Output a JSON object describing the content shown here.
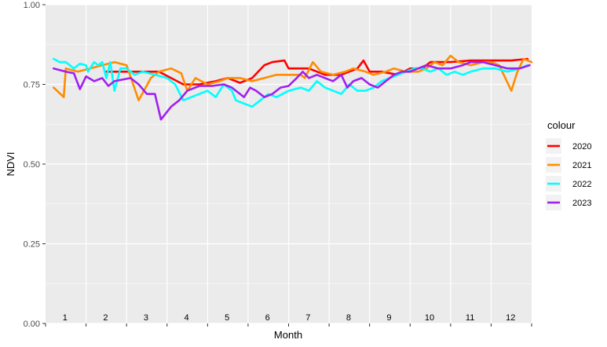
{
  "chart_data": {
    "type": "line",
    "title": "",
    "xlabel": "Month",
    "ylabel": "NDVI",
    "ylim": [
      0,
      1
    ],
    "xlim": [
      0.5,
      12.5
    ],
    "yticks": [
      "0.00",
      "0.25",
      "0.50",
      "0.75",
      "1.00"
    ],
    "month_labels": [
      "1",
      "2",
      "3",
      "4",
      "5",
      "6",
      "7",
      "8",
      "9",
      "10",
      "11",
      "12"
    ],
    "grid": true,
    "legend": {
      "title": "colour",
      "position": "right"
    },
    "series": [
      {
        "name": "2020",
        "color": "#FF0000",
        "points": [
          [
            2.0,
            0.79
          ],
          [
            2.5,
            0.79
          ],
          [
            3.0,
            0.79
          ],
          [
            3.3,
            0.79
          ],
          [
            3.6,
            0.77
          ],
          [
            3.9,
            0.75
          ],
          [
            4.3,
            0.75
          ],
          [
            4.7,
            0.76
          ],
          [
            5.0,
            0.77
          ],
          [
            5.3,
            0.755
          ],
          [
            5.6,
            0.77
          ],
          [
            5.9,
            0.81
          ],
          [
            6.1,
            0.82
          ],
          [
            6.4,
            0.825
          ],
          [
            6.5,
            0.8
          ],
          [
            6.8,
            0.8
          ],
          [
            7.0,
            0.8
          ],
          [
            7.4,
            0.78
          ],
          [
            7.8,
            0.78
          ],
          [
            8.2,
            0.8
          ],
          [
            8.35,
            0.825
          ],
          [
            8.5,
            0.79
          ],
          [
            8.8,
            0.79
          ],
          [
            9.2,
            0.78
          ],
          [
            9.5,
            0.8
          ],
          [
            9.8,
            0.8
          ],
          [
            10.0,
            0.82
          ],
          [
            10.5,
            0.82
          ],
          [
            11.0,
            0.825
          ],
          [
            11.5,
            0.825
          ],
          [
            12.0,
            0.825
          ],
          [
            12.4,
            0.83
          ]
        ]
      },
      {
        "name": "2021",
        "color": "#FF8C00",
        "points": [
          [
            0.7,
            0.74
          ],
          [
            0.95,
            0.71
          ],
          [
            1.0,
            0.8
          ],
          [
            1.3,
            0.79
          ],
          [
            1.6,
            0.8
          ],
          [
            1.9,
            0.81
          ],
          [
            2.2,
            0.82
          ],
          [
            2.5,
            0.81
          ],
          [
            2.8,
            0.7
          ],
          [
            2.95,
            0.735
          ],
          [
            3.1,
            0.77
          ],
          [
            3.3,
            0.79
          ],
          [
            3.6,
            0.8
          ],
          [
            3.85,
            0.785
          ],
          [
            4.0,
            0.73
          ],
          [
            4.2,
            0.77
          ],
          [
            4.5,
            0.75
          ],
          [
            4.8,
            0.76
          ],
          [
            5.0,
            0.77
          ],
          [
            5.3,
            0.77
          ],
          [
            5.6,
            0.76
          ],
          [
            5.9,
            0.77
          ],
          [
            6.2,
            0.78
          ],
          [
            6.5,
            0.78
          ],
          [
            6.8,
            0.78
          ],
          [
            6.9,
            0.77
          ],
          [
            7.1,
            0.82
          ],
          [
            7.3,
            0.79
          ],
          [
            7.6,
            0.78
          ],
          [
            7.9,
            0.79
          ],
          [
            8.1,
            0.8
          ],
          [
            8.4,
            0.79
          ],
          [
            8.6,
            0.78
          ],
          [
            8.9,
            0.79
          ],
          [
            9.1,
            0.8
          ],
          [
            9.4,
            0.79
          ],
          [
            9.7,
            0.79
          ],
          [
            9.9,
            0.8
          ],
          [
            10.1,
            0.82
          ],
          [
            10.3,
            0.81
          ],
          [
            10.5,
            0.84
          ],
          [
            10.7,
            0.82
          ],
          [
            11.0,
            0.81
          ],
          [
            11.3,
            0.82
          ],
          [
            11.5,
            0.82
          ],
          [
            11.7,
            0.81
          ],
          [
            12.0,
            0.73
          ],
          [
            12.15,
            0.79
          ],
          [
            12.3,
            0.83
          ],
          [
            12.5,
            0.82
          ]
        ]
      },
      {
        "name": "2022",
        "color": "#00FFFF",
        "points": [
          [
            0.7,
            0.83
          ],
          [
            0.85,
            0.82
          ],
          [
            1.0,
            0.82
          ],
          [
            1.2,
            0.8
          ],
          [
            1.35,
            0.815
          ],
          [
            1.5,
            0.81
          ],
          [
            1.55,
            0.79
          ],
          [
            1.7,
            0.82
          ],
          [
            1.8,
            0.81
          ],
          [
            1.9,
            0.82
          ],
          [
            2.0,
            0.77
          ],
          [
            2.1,
            0.82
          ],
          [
            2.2,
            0.73
          ],
          [
            2.35,
            0.8
          ],
          [
            2.5,
            0.8
          ],
          [
            2.7,
            0.78
          ],
          [
            2.9,
            0.79
          ],
          [
            3.2,
            0.78
          ],
          [
            3.5,
            0.77
          ],
          [
            3.7,
            0.75
          ],
          [
            3.9,
            0.7
          ],
          [
            4.1,
            0.71
          ],
          [
            4.3,
            0.72
          ],
          [
            4.5,
            0.73
          ],
          [
            4.7,
            0.71
          ],
          [
            4.9,
            0.75
          ],
          [
            5.1,
            0.73
          ],
          [
            5.2,
            0.7
          ],
          [
            5.4,
            0.69
          ],
          [
            5.6,
            0.68
          ],
          [
            5.8,
            0.7
          ],
          [
            6.0,
            0.72
          ],
          [
            6.2,
            0.71
          ],
          [
            6.5,
            0.73
          ],
          [
            6.8,
            0.74
          ],
          [
            7.0,
            0.73
          ],
          [
            7.2,
            0.76
          ],
          [
            7.4,
            0.74
          ],
          [
            7.6,
            0.73
          ],
          [
            7.8,
            0.72
          ],
          [
            8.0,
            0.75
          ],
          [
            8.2,
            0.73
          ],
          [
            8.4,
            0.73
          ],
          [
            8.6,
            0.74
          ],
          [
            8.8,
            0.76
          ],
          [
            9.0,
            0.77
          ],
          [
            9.2,
            0.78
          ],
          [
            9.4,
            0.79
          ],
          [
            9.6,
            0.8
          ],
          [
            9.8,
            0.8
          ],
          [
            10.0,
            0.79
          ],
          [
            10.2,
            0.8
          ],
          [
            10.4,
            0.78
          ],
          [
            10.6,
            0.79
          ],
          [
            10.8,
            0.78
          ],
          [
            11.0,
            0.79
          ],
          [
            11.3,
            0.8
          ],
          [
            11.6,
            0.8
          ],
          [
            11.9,
            0.79
          ],
          [
            12.2,
            0.8
          ],
          [
            12.4,
            0.81
          ]
        ]
      },
      {
        "name": "2023",
        "color": "#A020F0",
        "points": [
          [
            0.7,
            0.8
          ],
          [
            1.0,
            0.79
          ],
          [
            1.2,
            0.785
          ],
          [
            1.35,
            0.735
          ],
          [
            1.5,
            0.775
          ],
          [
            1.7,
            0.76
          ],
          [
            1.9,
            0.77
          ],
          [
            2.05,
            0.745
          ],
          [
            2.2,
            0.76
          ],
          [
            2.4,
            0.765
          ],
          [
            2.6,
            0.77
          ],
          [
            2.8,
            0.75
          ],
          [
            3.0,
            0.72
          ],
          [
            3.2,
            0.72
          ],
          [
            3.35,
            0.64
          ],
          [
            3.6,
            0.68
          ],
          [
            3.8,
            0.7
          ],
          [
            4.0,
            0.73
          ],
          [
            4.3,
            0.745
          ],
          [
            4.6,
            0.745
          ],
          [
            4.9,
            0.75
          ],
          [
            5.1,
            0.74
          ],
          [
            5.2,
            0.73
          ],
          [
            5.4,
            0.71
          ],
          [
            5.55,
            0.74
          ],
          [
            5.7,
            0.73
          ],
          [
            5.9,
            0.71
          ],
          [
            6.1,
            0.72
          ],
          [
            6.3,
            0.74
          ],
          [
            6.5,
            0.745
          ],
          [
            6.7,
            0.77
          ],
          [
            6.85,
            0.79
          ],
          [
            7.0,
            0.77
          ],
          [
            7.2,
            0.78
          ],
          [
            7.4,
            0.77
          ],
          [
            7.6,
            0.76
          ],
          [
            7.8,
            0.78
          ],
          [
            7.95,
            0.74
          ],
          [
            8.1,
            0.76
          ],
          [
            8.3,
            0.77
          ],
          [
            8.5,
            0.75
          ],
          [
            8.7,
            0.74
          ],
          [
            8.9,
            0.76
          ],
          [
            9.1,
            0.78
          ],
          [
            9.3,
            0.79
          ],
          [
            9.5,
            0.79
          ],
          [
            9.7,
            0.8
          ],
          [
            9.9,
            0.81
          ],
          [
            10.2,
            0.8
          ],
          [
            10.5,
            0.8
          ],
          [
            10.8,
            0.81
          ],
          [
            11.0,
            0.82
          ],
          [
            11.3,
            0.82
          ],
          [
            11.6,
            0.81
          ],
          [
            11.9,
            0.8
          ],
          [
            12.2,
            0.8
          ],
          [
            12.45,
            0.81
          ]
        ]
      }
    ]
  }
}
